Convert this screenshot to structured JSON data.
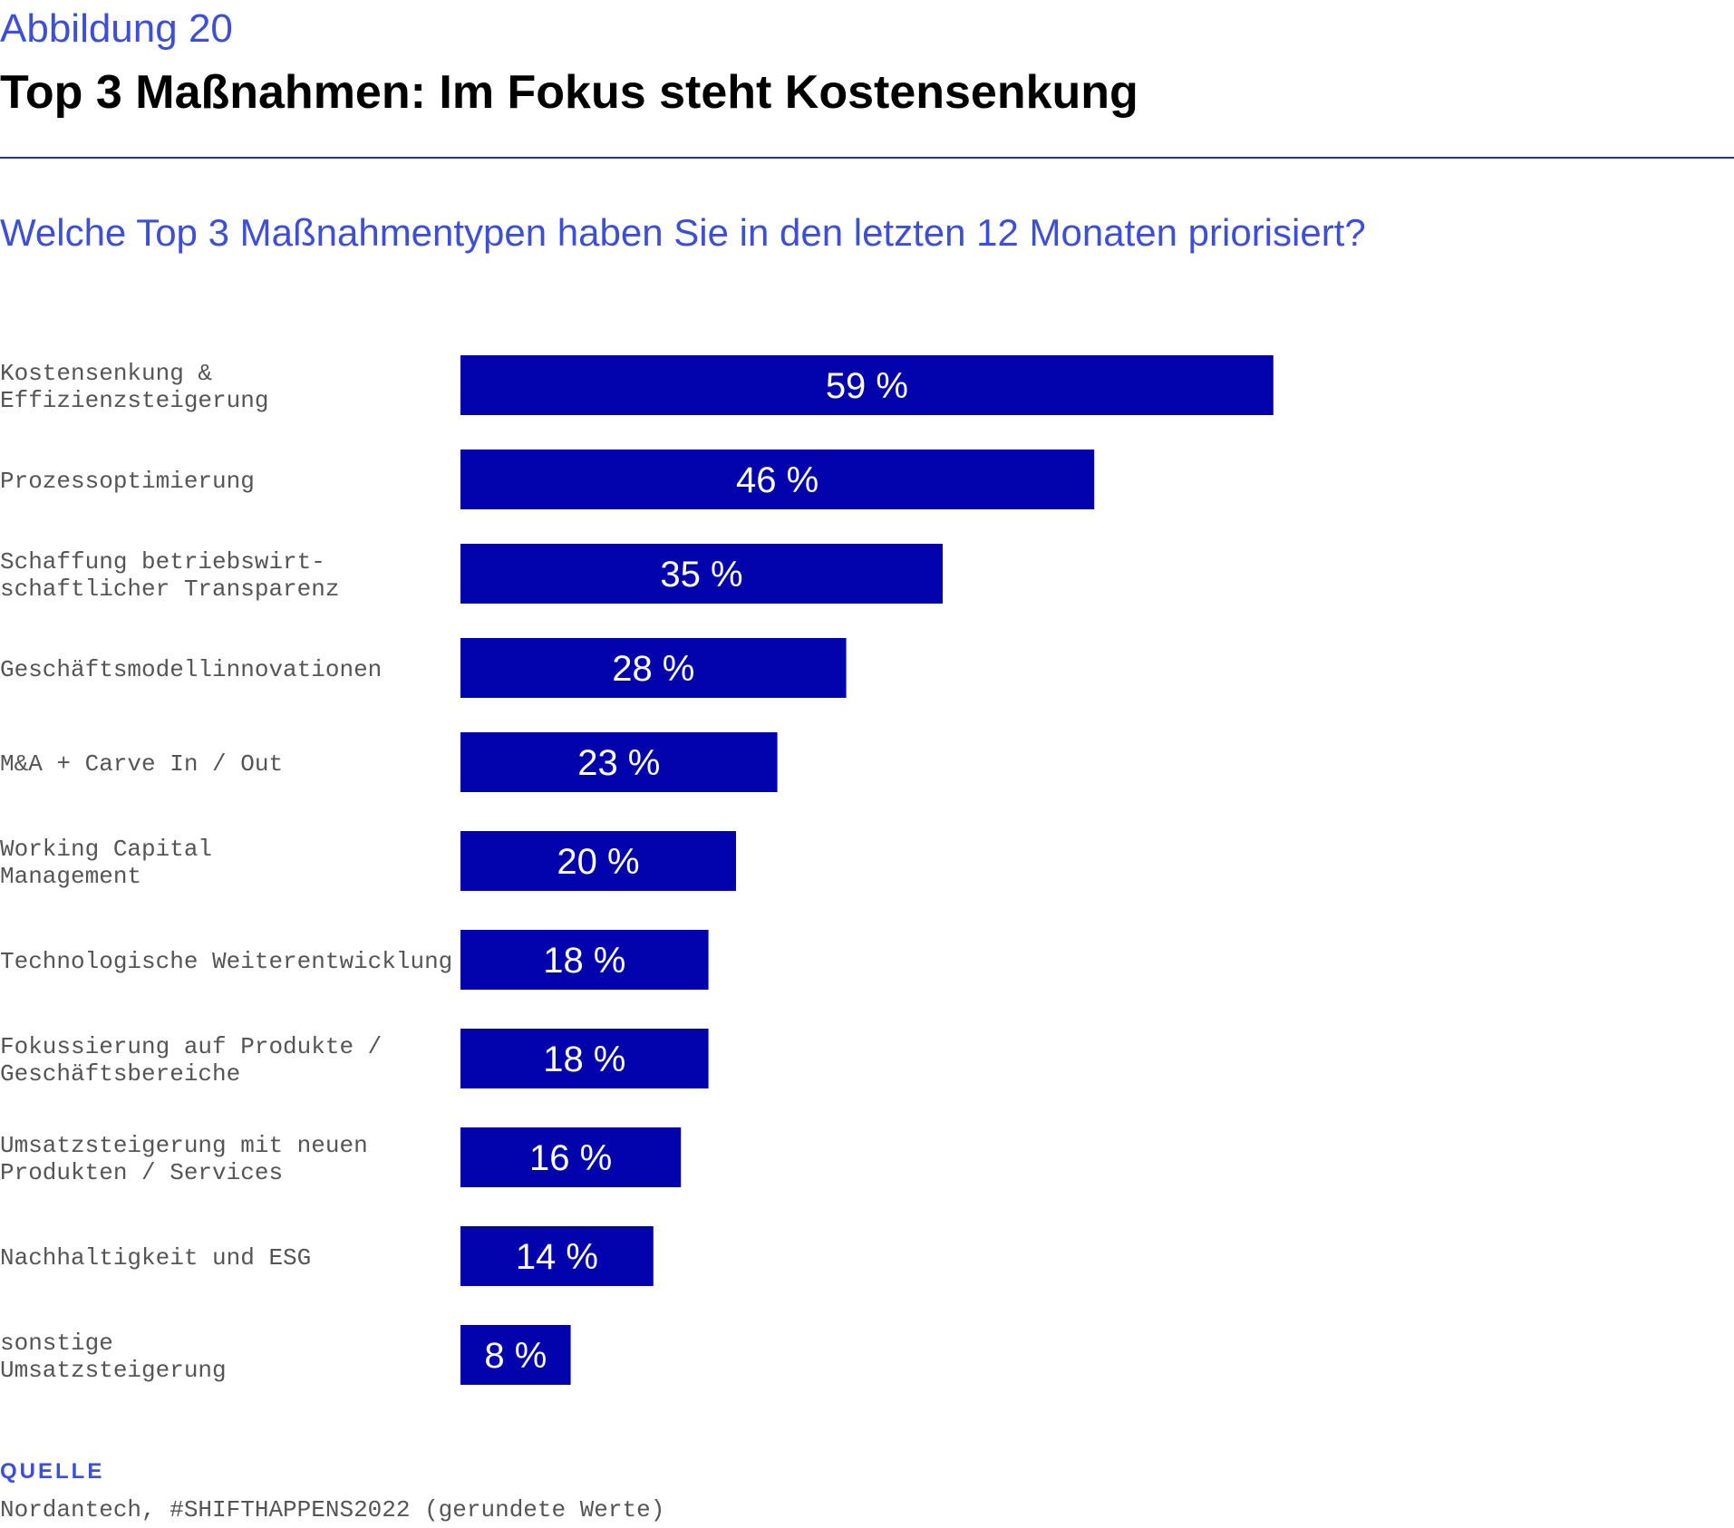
{
  "header": {
    "kicker": "Abbildung 20",
    "title": "Top 3 Maßnahmen: Im Fokus steht Kostensenkung",
    "question": "Welche Top 3 Maßnahmentypen haben Sie in den letzten 12 Monaten priorisiert?"
  },
  "colors": {
    "bar": "#0303ad",
    "accent": "#3d4fd6",
    "label_text": "#555555",
    "value_text": "#ffffff"
  },
  "chart_data": {
    "type": "bar",
    "orientation": "horizontal",
    "categories": [
      [
        "Kostensenkung &",
        "Effizienzsteigerung"
      ],
      [
        "Prozessoptimierung"
      ],
      [
        "Schaffung betriebswirt-",
        "schaftlicher Transparenz"
      ],
      [
        "Geschäftsmodellinnovationen"
      ],
      [
        "M&A + Carve In / Out"
      ],
      [
        "Working Capital",
        "Management"
      ],
      [
        "Technologische Weiterentwicklung"
      ],
      [
        "Fokussierung auf Produkte /",
        "Geschäftsbereiche"
      ],
      [
        "Umsatzsteigerung mit neuen",
        "Produkten / Services"
      ],
      [
        "Nachhaltigkeit und ESG"
      ],
      [
        "sonstige",
        "Umsatzsteigerung"
      ]
    ],
    "values": [
      59,
      46,
      35,
      28,
      23,
      20,
      18,
      18,
      16,
      14,
      8
    ],
    "value_labels": [
      "59 %",
      "46 %",
      "35 %",
      "28 %",
      "23 %",
      "20 %",
      "18 %",
      "18 %",
      "16 %",
      "14 %",
      "8 %"
    ],
    "unit": "%",
    "xlim": [
      0,
      100
    ],
    "grid": false,
    "legend": "none"
  },
  "source": {
    "heading": "QUELLE",
    "text": "Nordantech, #SHIFTHAPPENS2022 (gerundete Werte)"
  }
}
